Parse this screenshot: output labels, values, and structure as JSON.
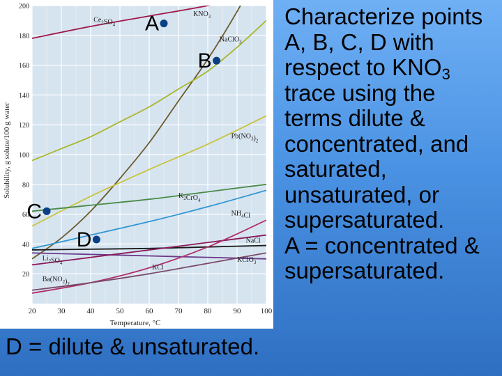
{
  "slide": {
    "question_lines": [
      "Characterize points",
      "A, B, C, D with",
      "respect to KNO",
      "trace using the",
      "terms dilute &",
      "concentrated, and",
      "saturated,",
      "unsaturated, or",
      "supersaturated.",
      "A = concentrated &",
      "supersaturated."
    ],
    "subscript_3": "3",
    "answer_d": "D = dilute & unsaturated."
  },
  "chart_data": {
    "type": "line",
    "xlabel": "Temperature, °C",
    "ylabel": "Solubility, g solute/100 g water",
    "xlim": [
      20,
      100
    ],
    "ylim": [
      0,
      200
    ],
    "x_ticks": [
      20,
      30,
      40,
      50,
      60,
      70,
      80,
      90,
      100
    ],
    "y_ticks": [
      20,
      40,
      60,
      80,
      100,
      120,
      140,
      160,
      180,
      200
    ],
    "series": [
      {
        "name": "Ce2(SO4)3",
        "color": "#a01848",
        "x": [
          20,
          40,
          60,
          80,
          100
        ],
        "y": [
          178,
          186,
          193,
          200,
          209
        ]
      },
      {
        "name": "KNO3",
        "color": "#6b5a2a",
        "x": [
          20,
          30,
          40,
          50,
          60,
          70,
          80,
          90,
          100
        ],
        "y": [
          30,
          44,
          62,
          84,
          108,
          136,
          164,
          196,
          232
        ]
      },
      {
        "name": "NaClO3",
        "color": "#a8b82a",
        "x": [
          20,
          30,
          40,
          50,
          60,
          70,
          80,
          90,
          100
        ],
        "y": [
          96,
          104,
          112,
          122,
          132,
          144,
          156,
          172,
          190
        ]
      },
      {
        "name": "Pb(NO3)2",
        "color": "#c8c43a",
        "x": [
          20,
          40,
          60,
          80,
          100
        ],
        "y": [
          52,
          72,
          90,
          107,
          126
        ]
      },
      {
        "name": "K2CrO4",
        "color": "#4a8a48",
        "x": [
          20,
          40,
          60,
          80,
          100
        ],
        "y": [
          62,
          66,
          70,
          75,
          80
        ]
      },
      {
        "name": "NH4Cl",
        "color": "#2f96d2",
        "x": [
          20,
          40,
          60,
          80,
          100
        ],
        "y": [
          37,
          46,
          55,
          65,
          76
        ]
      },
      {
        "name": "NaCl",
        "color": "#1a1a1a",
        "x": [
          20,
          40,
          60,
          80,
          100
        ],
        "y": [
          36,
          36.5,
          37,
          38,
          39
        ]
      },
      {
        "name": "Li2SO4",
        "color": "#6a3a8a",
        "x": [
          20,
          40,
          60,
          80,
          100
        ],
        "y": [
          34,
          33,
          32,
          31,
          30
        ]
      },
      {
        "name": "KCl",
        "color": "#8a1a5a",
        "x": [
          20,
          40,
          60,
          80,
          100
        ],
        "y": [
          26,
          31,
          36,
          41,
          46
        ]
      },
      {
        "name": "KClO3",
        "color": "#b0306a",
        "x": [
          20,
          40,
          60,
          80,
          100
        ],
        "y": [
          7,
          14,
          24,
          38,
          56
        ]
      },
      {
        "name": "Ba(NO2)2",
        "color": "#7a4a6a",
        "x": [
          20,
          40,
          60,
          80,
          100
        ],
        "y": [
          9,
          14,
          20,
          27,
          34
        ]
      }
    ],
    "labels": [
      {
        "text": "Ce",
        "sub": "2",
        "text2": "SO",
        "sub2": "4",
        "x": 41,
        "y": 189
      },
      {
        "text": "KNO",
        "sub": "3",
        "x": 75,
        "y": 193
      },
      {
        "text": "NaClO",
        "sub": "3",
        "x": 84,
        "y": 176
      },
      {
        "text": "Pb(NO",
        "sub": "3",
        "text2": ")",
        "sub2": "2",
        "x": 88,
        "y": 111
      },
      {
        "text": "K",
        "sub": "2",
        "text2": "CrO",
        "sub2": "4",
        "x": 70,
        "y": 71
      },
      {
        "text": "NH",
        "sub": "4",
        "text2": "Cl",
        "x": 88,
        "y": 59
      },
      {
        "text": "NaCl",
        "x": 93,
        "y": 41
      },
      {
        "text": "Li",
        "sub": "2",
        "text2": "SO",
        "sub2": "4",
        "x": 23.5,
        "y": 29
      },
      {
        "text": "KCl",
        "x": 61,
        "y": 23
      },
      {
        "text": "KClO",
        "sub": "3",
        "x": 90,
        "y": 28
      },
      {
        "text": "Ba(NO",
        "sub": "2",
        "text2": ")",
        "sub2": "2",
        "x": 23.5,
        "y": 15
      }
    ],
    "points": [
      {
        "label": "A",
        "x": 65,
        "y": 188
      },
      {
        "label": "B",
        "x": 83,
        "y": 163
      },
      {
        "label": "C",
        "x": 25,
        "y": 62
      },
      {
        "label": "D",
        "x": 42,
        "y": 43
      }
    ],
    "grid": true,
    "colors": {
      "plot_background": "#d6e4f0",
      "grid_line": "#ffffff",
      "point_label": "#000000"
    }
  }
}
